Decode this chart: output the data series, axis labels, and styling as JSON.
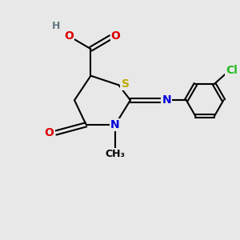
{
  "background_color": "#e8e8e8",
  "figsize": [
    3.0,
    3.0
  ],
  "dpi": 100,
  "colors": {
    "C": "#000000",
    "H": "#607880",
    "O": "#dd0000",
    "N": "#0000dd",
    "S": "#bbaa00",
    "Cl": "#22bb22",
    "bond": "#000000"
  },
  "lw": 1.5,
  "fs": 10
}
